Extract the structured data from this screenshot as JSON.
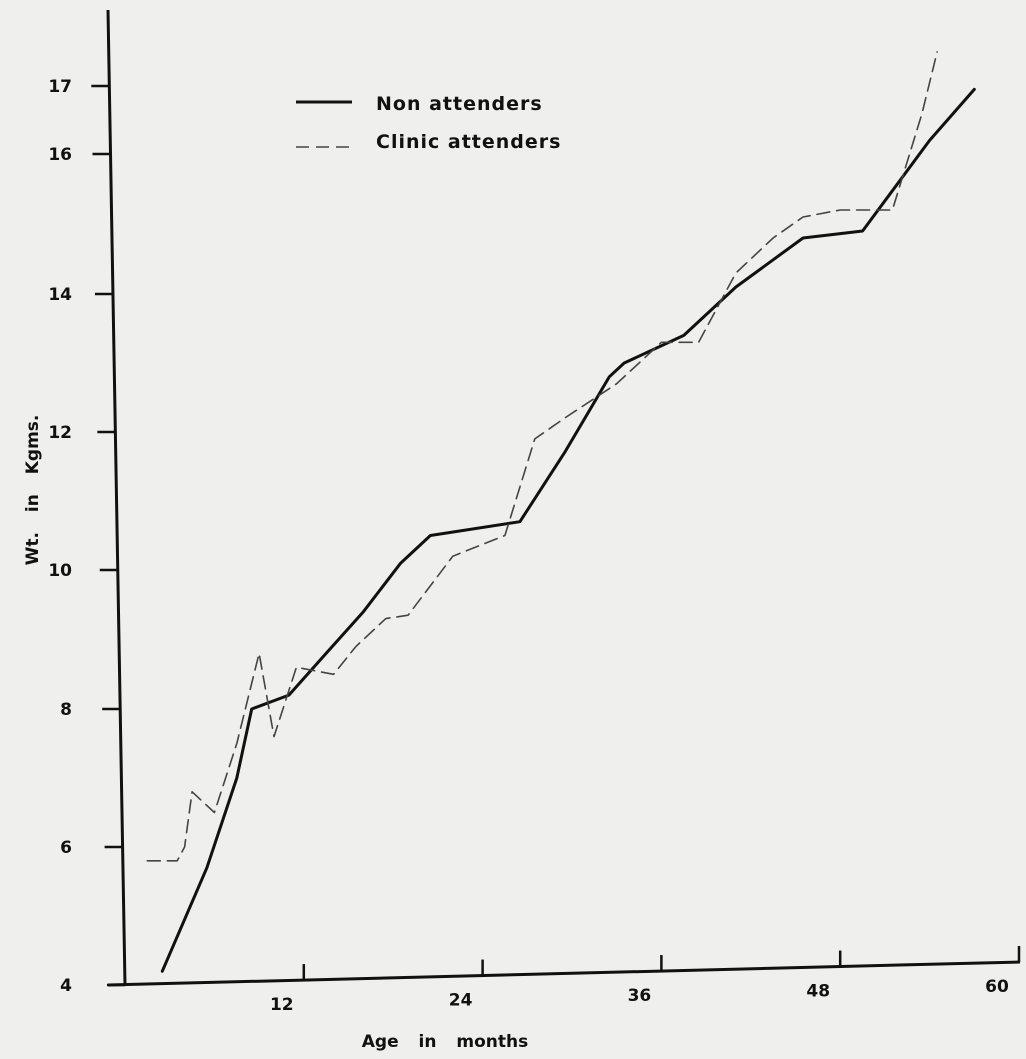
{
  "chart_data": {
    "type": "line",
    "title": "",
    "xlabel": "Age in months",
    "ylabel": "Wt. in Kgms.",
    "xlim": [
      0,
      60
    ],
    "ylim": [
      4,
      17
    ],
    "x_ticks": [
      {
        "value": 12,
        "label": "12"
      },
      {
        "value": 24,
        "label": "24"
      },
      {
        "value": 36,
        "label": "36"
      },
      {
        "value": 48,
        "label": "48"
      },
      {
        "value": 60,
        "label": "60"
      }
    ],
    "y_ticks": [
      {
        "value": 4,
        "label": "4"
      },
      {
        "value": 6,
        "label": "6"
      },
      {
        "value": 8,
        "label": "8"
      },
      {
        "value": 10,
        "label": "10"
      },
      {
        "value": 12,
        "label": "12"
      },
      {
        "value": 14,
        "label": "14"
      },
      {
        "value": 16,
        "label": "16"
      },
      {
        "value": 17,
        "label": "17"
      }
    ],
    "grid": false,
    "legend_position": "top-left",
    "series": [
      {
        "name": "Non attenders",
        "style": "solid",
        "color": "#111111",
        "points": [
          [
            2.5,
            4.2
          ],
          [
            5.5,
            5.7
          ],
          [
            7.5,
            7.0
          ],
          [
            8.5,
            8.0
          ],
          [
            11.0,
            8.2
          ],
          [
            13.5,
            8.8
          ],
          [
            16.0,
            9.4
          ],
          [
            18.5,
            10.1
          ],
          [
            20.5,
            10.5
          ],
          [
            26.5,
            10.7
          ],
          [
            29.5,
            11.7
          ],
          [
            32.5,
            12.8
          ],
          [
            33.5,
            13.0
          ],
          [
            37.5,
            13.4
          ],
          [
            41.0,
            14.1
          ],
          [
            45.5,
            14.8
          ],
          [
            49.5,
            14.9
          ],
          [
            54.0,
            16.2
          ],
          [
            57.0,
            16.95
          ]
        ]
      },
      {
        "name": "Clinic attenders",
        "style": "dashed",
        "color": "#444444",
        "points": [
          [
            1.5,
            5.8
          ],
          [
            3.5,
            5.8
          ],
          [
            4.0,
            6.0
          ],
          [
            4.5,
            6.8
          ],
          [
            6.0,
            6.5
          ],
          [
            7.5,
            7.5
          ],
          [
            9.0,
            8.8
          ],
          [
            10.0,
            7.6
          ],
          [
            11.5,
            8.6
          ],
          [
            14.0,
            8.5
          ],
          [
            15.5,
            8.9
          ],
          [
            17.5,
            9.3
          ],
          [
            19.0,
            9.35
          ],
          [
            22.0,
            10.2
          ],
          [
            25.5,
            10.5
          ],
          [
            27.5,
            11.9
          ],
          [
            29.5,
            12.2
          ],
          [
            33.0,
            12.7
          ],
          [
            36.0,
            13.3
          ],
          [
            38.5,
            13.3
          ],
          [
            41.0,
            14.3
          ],
          [
            43.5,
            14.8
          ],
          [
            45.5,
            15.1
          ],
          [
            48.0,
            15.2
          ],
          [
            51.5,
            15.2
          ],
          [
            53.5,
            16.6
          ],
          [
            54.5,
            17.5
          ]
        ]
      }
    ]
  }
}
